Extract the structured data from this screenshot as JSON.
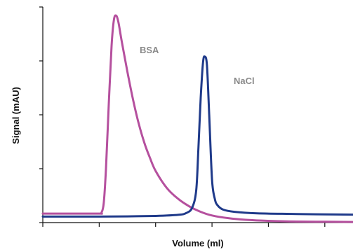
{
  "chart_data": {
    "type": "line",
    "title": "",
    "xlabel": "Volume (ml)",
    "ylabel": "Signal (mAU)",
    "x_tick_labels": false,
    "y_tick_labels": false,
    "xlim": [
      0,
      5.5
    ],
    "ylim": [
      0,
      100
    ],
    "x_ticks": [
      0,
      1,
      2,
      3,
      4,
      5
    ],
    "y_ticks": [
      0,
      25,
      50,
      75,
      100
    ],
    "grid": false,
    "legend": "none (inline labels)",
    "series": [
      {
        "name": "BSA",
        "color": "#b5509e",
        "points": [
          [
            0.0,
            4.2
          ],
          [
            0.5,
            4.2
          ],
          [
            1.0,
            4.2
          ],
          [
            1.04,
            4.6
          ],
          [
            1.08,
            9
          ],
          [
            1.12,
            25
          ],
          [
            1.17,
            55
          ],
          [
            1.22,
            82
          ],
          [
            1.26,
            94
          ],
          [
            1.3,
            96
          ],
          [
            1.34,
            93
          ],
          [
            1.4,
            84
          ],
          [
            1.5,
            70
          ],
          [
            1.6,
            57
          ],
          [
            1.7,
            46
          ],
          [
            1.8,
            37
          ],
          [
            1.9,
            30
          ],
          [
            2.0,
            24
          ],
          [
            2.2,
            16
          ],
          [
            2.4,
            11
          ],
          [
            2.6,
            7.5
          ],
          [
            2.8,
            5
          ],
          [
            3.0,
            3.3
          ],
          [
            3.3,
            2
          ],
          [
            3.6,
            1.3
          ],
          [
            4.0,
            0.8
          ],
          [
            4.5,
            0.5
          ],
          [
            5.0,
            0.4
          ],
          [
            5.5,
            0.3
          ]
        ]
      },
      {
        "name": "NaCl",
        "color": "#1f3a8a",
        "points": [
          [
            0.0,
            2.8
          ],
          [
            0.5,
            2.8
          ],
          [
            1.0,
            2.8
          ],
          [
            1.5,
            2.9
          ],
          [
            2.0,
            3.1
          ],
          [
            2.4,
            3.6
          ],
          [
            2.55,
            4.5
          ],
          [
            2.65,
            7
          ],
          [
            2.72,
            15
          ],
          [
            2.76,
            35
          ],
          [
            2.8,
            58
          ],
          [
            2.84,
            74
          ],
          [
            2.87,
            77
          ],
          [
            2.91,
            73
          ],
          [
            2.95,
            50
          ],
          [
            3.0,
            20
          ],
          [
            3.05,
            11
          ],
          [
            3.1,
            8
          ],
          [
            3.2,
            6
          ],
          [
            3.4,
            5
          ],
          [
            3.8,
            4.3
          ],
          [
            4.5,
            4.0
          ],
          [
            5.0,
            3.8
          ],
          [
            5.5,
            3.7
          ]
        ]
      }
    ]
  }
}
